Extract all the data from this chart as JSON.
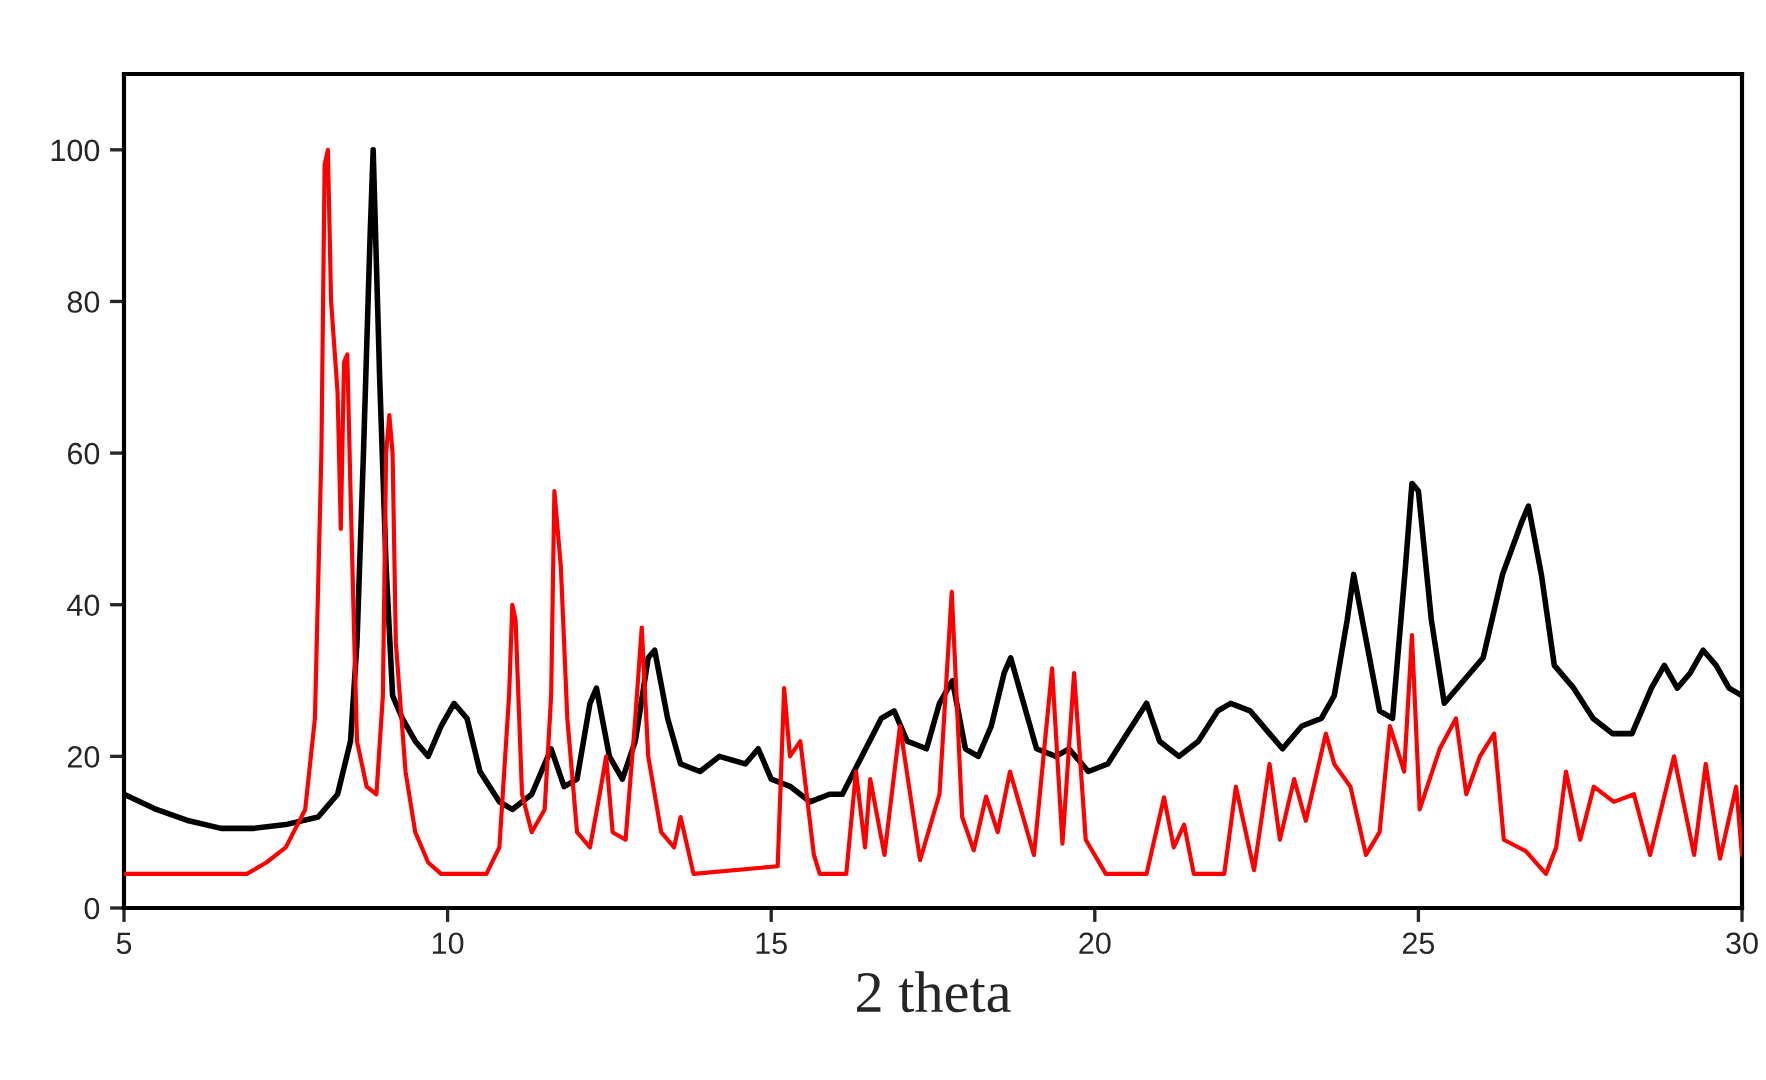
{
  "chart_data": {
    "type": "line",
    "xlabel": "2 theta",
    "xlim": [
      5,
      30
    ],
    "xticks": [
      5,
      10,
      15,
      20,
      25,
      30
    ],
    "ylim": [
      0,
      110
    ],
    "yticks": [
      0,
      20,
      40,
      60,
      80,
      100
    ],
    "grid": false,
    "marker": "none",
    "line_style": "solid",
    "series": [
      {
        "color": "#000000",
        "x": [
          5.0,
          5.5,
          6.0,
          6.5,
          7.0,
          7.5,
          8.0,
          8.3,
          8.5,
          8.6,
          8.7,
          8.8,
          8.85,
          8.95,
          9.05,
          9.15,
          9.3,
          9.5,
          9.7,
          9.9,
          10.1,
          10.3,
          10.5,
          10.8,
          11.0,
          11.3,
          11.6,
          11.8,
          12.0,
          12.2,
          12.3,
          12.5,
          12.7,
          12.9,
          13.1,
          13.2,
          13.4,
          13.6,
          13.9,
          14.2,
          14.6,
          14.8,
          15.0,
          15.3,
          15.6,
          15.9,
          16.1,
          16.4,
          16.7,
          16.9,
          17.1,
          17.4,
          17.6,
          17.8,
          18.0,
          18.2,
          18.4,
          18.6,
          18.7,
          18.9,
          19.1,
          19.4,
          19.6,
          19.9,
          20.2,
          20.5,
          20.8,
          21.0,
          21.3,
          21.6,
          21.9,
          22.1,
          22.4,
          22.7,
          22.9,
          23.2,
          23.5,
          23.7,
          23.9,
          24.0,
          24.2,
          24.4,
          24.6,
          24.8,
          24.9,
          25.0,
          25.2,
          25.4,
          25.7,
          26.0,
          26.3,
          26.6,
          26.7,
          26.9,
          27.1,
          27.4,
          27.7,
          28.0,
          28.3,
          28.6,
          28.8,
          29.0,
          29.2,
          29.4,
          29.6,
          29.8,
          30.0
        ],
        "values": [
          15,
          13,
          11.5,
          10.5,
          10.5,
          11,
          12,
          15,
          22,
          35,
          60,
          88,
          100,
          70,
          45,
          28,
          25,
          22,
          20,
          24,
          27,
          25,
          18,
          14,
          13,
          15,
          21,
          16,
          17,
          27,
          29,
          20,
          17,
          22,
          33,
          34,
          25,
          19,
          18,
          20,
          19,
          21,
          17,
          16,
          14,
          15,
          15,
          20,
          25,
          26,
          22,
          21,
          27,
          30,
          21,
          20,
          24,
          31,
          33,
          27,
          21,
          20,
          21,
          18,
          19,
          23,
          27,
          22,
          20,
          22,
          26,
          27,
          26,
          23,
          21,
          24,
          25,
          28,
          38,
          44,
          35,
          26,
          25,
          45,
          56,
          55,
          38,
          27,
          30,
          33,
          44,
          51,
          53,
          44,
          32,
          29,
          25,
          23,
          23,
          29,
          32,
          29,
          31,
          34,
          32,
          29,
          28
        ]
      },
      {
        "color": "#ff0000",
        "x": [
          5.0,
          6.9,
          7.2,
          7.5,
          7.8,
          7.95,
          8.05,
          8.1,
          8.15,
          8.2,
          8.3,
          8.35,
          8.4,
          8.45,
          8.5,
          8.55,
          8.6,
          8.75,
          8.9,
          9.0,
          9.05,
          9.1,
          9.15,
          9.2,
          9.35,
          9.5,
          9.7,
          9.9,
          10.6,
          10.8,
          10.95,
          11.0,
          11.05,
          11.15,
          11.3,
          11.5,
          11.6,
          11.65,
          11.75,
          11.85,
          12.0,
          12.2,
          12.35,
          12.45,
          12.55,
          12.75,
          12.9,
          13.0,
          13.1,
          13.3,
          13.5,
          13.6,
          13.8,
          15.1,
          15.2,
          15.29,
          15.45,
          15.66,
          15.75,
          16.16,
          16.31,
          16.45,
          16.53,
          16.75,
          16.99,
          17.3,
          17.6,
          17.79,
          17.95,
          18.13,
          18.32,
          18.5,
          18.69,
          19.06,
          19.34,
          19.5,
          19.68,
          19.86,
          20.17,
          20.8,
          21.07,
          21.22,
          21.38,
          21.53,
          22.0,
          22.18,
          22.46,
          22.7,
          22.86,
          23.08,
          23.26,
          23.57,
          23.7,
          23.95,
          24.19,
          24.4,
          24.56,
          24.78,
          24.9,
          25.02,
          25.33,
          25.58,
          25.74,
          25.95,
          26.17,
          26.32,
          26.66,
          26.97,
          27.13,
          27.28,
          27.5,
          27.71,
          28.02,
          28.33,
          28.58,
          28.95,
          29.26,
          29.44,
          29.66,
          29.91,
          30.0
        ],
        "values": [
          4.5,
          4.5,
          6,
          8,
          13,
          25,
          60,
          98,
          100,
          80,
          68,
          50,
          72,
          73,
          55,
          38,
          22,
          16,
          15,
          28,
          60,
          65,
          60,
          35,
          18,
          10,
          6,
          4.5,
          4.5,
          8,
          28,
          40,
          38,
          15,
          10,
          13,
          28,
          55,
          45,
          25,
          10,
          8,
          15,
          20,
          10,
          9,
          25,
          37,
          20,
          10,
          8,
          12,
          4.5,
          5.5,
          29,
          20,
          22,
          7,
          4.5,
          4.5,
          18,
          8,
          17,
          7,
          24,
          6.3,
          15,
          41.7,
          12,
          7.6,
          14.7,
          10,
          18,
          7,
          31.6,
          8.5,
          31,
          9,
          4.5,
          4.5,
          14.6,
          8,
          11,
          4.5,
          4.5,
          16,
          5,
          19,
          9,
          17,
          11.5,
          23,
          19,
          16,
          7,
          10,
          24,
          18,
          36,
          13,
          21,
          25,
          15,
          20,
          23,
          9,
          7.5,
          4.5,
          8,
          18,
          9,
          16,
          14,
          15,
          7,
          20,
          7,
          19,
          6.5,
          16,
          7
        ]
      }
    ]
  }
}
